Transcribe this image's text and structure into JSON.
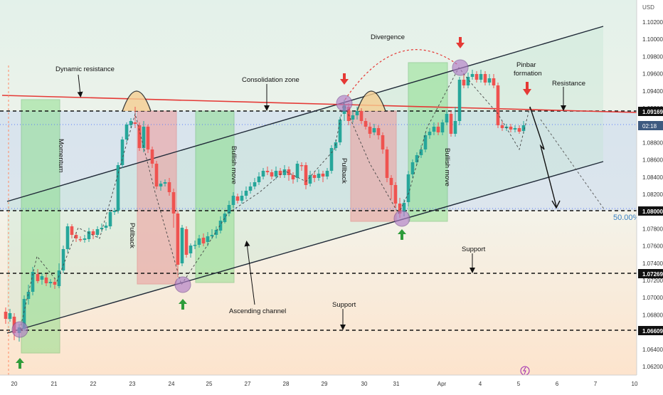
{
  "chart": {
    "currency": "USD",
    "type": "candlestick",
    "y_ticks": [
      "1.10200",
      "1.10000",
      "1.09800",
      "1.09600",
      "1.09400",
      "1.09200",
      "1.09000",
      "1.08800",
      "1.08600",
      "1.08400",
      "1.08200",
      "1.08000",
      "1.07800",
      "1.07600",
      "1.07400",
      "1.07200",
      "1.07000",
      "1.06800",
      "1.06600",
      "1.06400",
      "1.06200"
    ],
    "x_ticks": [
      "20",
      "21",
      "22",
      "23",
      "24",
      "25",
      "27",
      "28",
      "29",
      "30",
      "31",
      "Apr",
      "4",
      "5",
      "6",
      "7",
      "10",
      "11"
    ],
    "price_labels": {
      "top_level": "1.09169",
      "current_time": "02:18",
      "mid_level": "1.08000",
      "level_3": "1.07269",
      "level_4": "1.06609"
    },
    "fib_label": "50.00%",
    "colors": {
      "bull": "#26a69a",
      "bear": "#ef5350",
      "resistance": "#e53935",
      "channel": "#1f2937",
      "zone_green": "#4caf50",
      "zone_red": "#e57373"
    }
  },
  "annotations": {
    "dynamic_resistance": "Dynamic resistance",
    "consolidation_zone": "Consolidation zone",
    "divergence": "Divergence",
    "pinbar": "Pinbar",
    "formation": "formation",
    "resistance": "Resistance",
    "support_upper": "Support",
    "support_lower": "Support",
    "ascending_channel": "Ascending channel",
    "momentum": "Momentum",
    "pullback_1": "Pullback",
    "bullish_move_1": "Bullish move",
    "pullback_2": "Pullback",
    "bullish_move_2": "Bullish move"
  },
  "chart_data": {
    "type": "candlestick",
    "x": [
      "20",
      "21",
      "22",
      "23",
      "24",
      "25",
      "27",
      "28",
      "29",
      "30",
      "31",
      "Apr",
      "4",
      "5",
      "6"
    ],
    "horizontal_levels": [
      1.09169,
      1.08,
      1.07269,
      1.06609
    ],
    "ylim": [
      1.061,
      1.103
    ],
    "grid": false
  }
}
